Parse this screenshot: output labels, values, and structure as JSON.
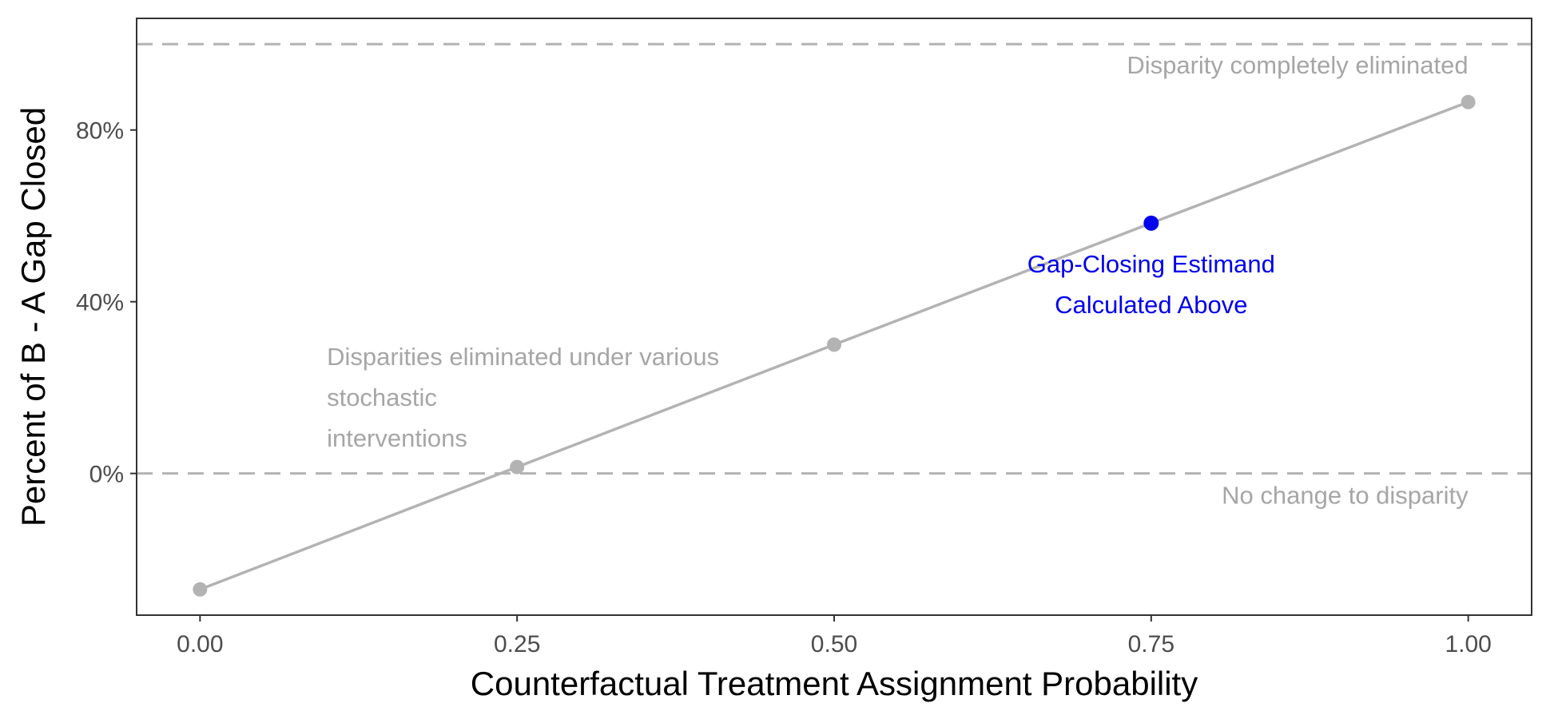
{
  "chart_data": {
    "type": "line",
    "xlabel": "Counterfactual Treatment Assignment Probability",
    "ylabel": "Percent of B - A Gap Closed",
    "xlim": [
      -0.05,
      1.05
    ],
    "ylim": [
      -33,
      106
    ],
    "x_ticks": [
      0,
      0.25,
      0.5,
      0.75,
      1
    ],
    "x_tick_labels": [
      "0.00",
      "0.25",
      "0.50",
      "0.75",
      "1.00"
    ],
    "y_ticks": [
      0,
      40,
      80
    ],
    "y_tick_labels": [
      "0%",
      "40%",
      "80%"
    ],
    "grid": false,
    "series": [
      {
        "x": [
          0,
          0.25,
          0.5,
          0.75,
          1
        ],
        "y": [
          -27,
          1.5,
          30,
          58.3,
          86.5
        ],
        "color": "#b3b3b3"
      }
    ],
    "highlight_point": {
      "x": 0.75,
      "y": 58.3,
      "color": "#0000ee"
    },
    "reference_lines": [
      {
        "y": 100,
        "label": "Disparity completely eliminated",
        "color": "#b3b3b3"
      },
      {
        "y": 0,
        "label": "No change to disparity",
        "color": "#b3b3b3"
      }
    ],
    "annotations": {
      "stochastic": [
        "Disparities eliminated under various",
        "stochastic",
        "interventions"
      ],
      "estimand": [
        "Gap-Closing Estimand",
        "Calculated Above"
      ]
    }
  }
}
